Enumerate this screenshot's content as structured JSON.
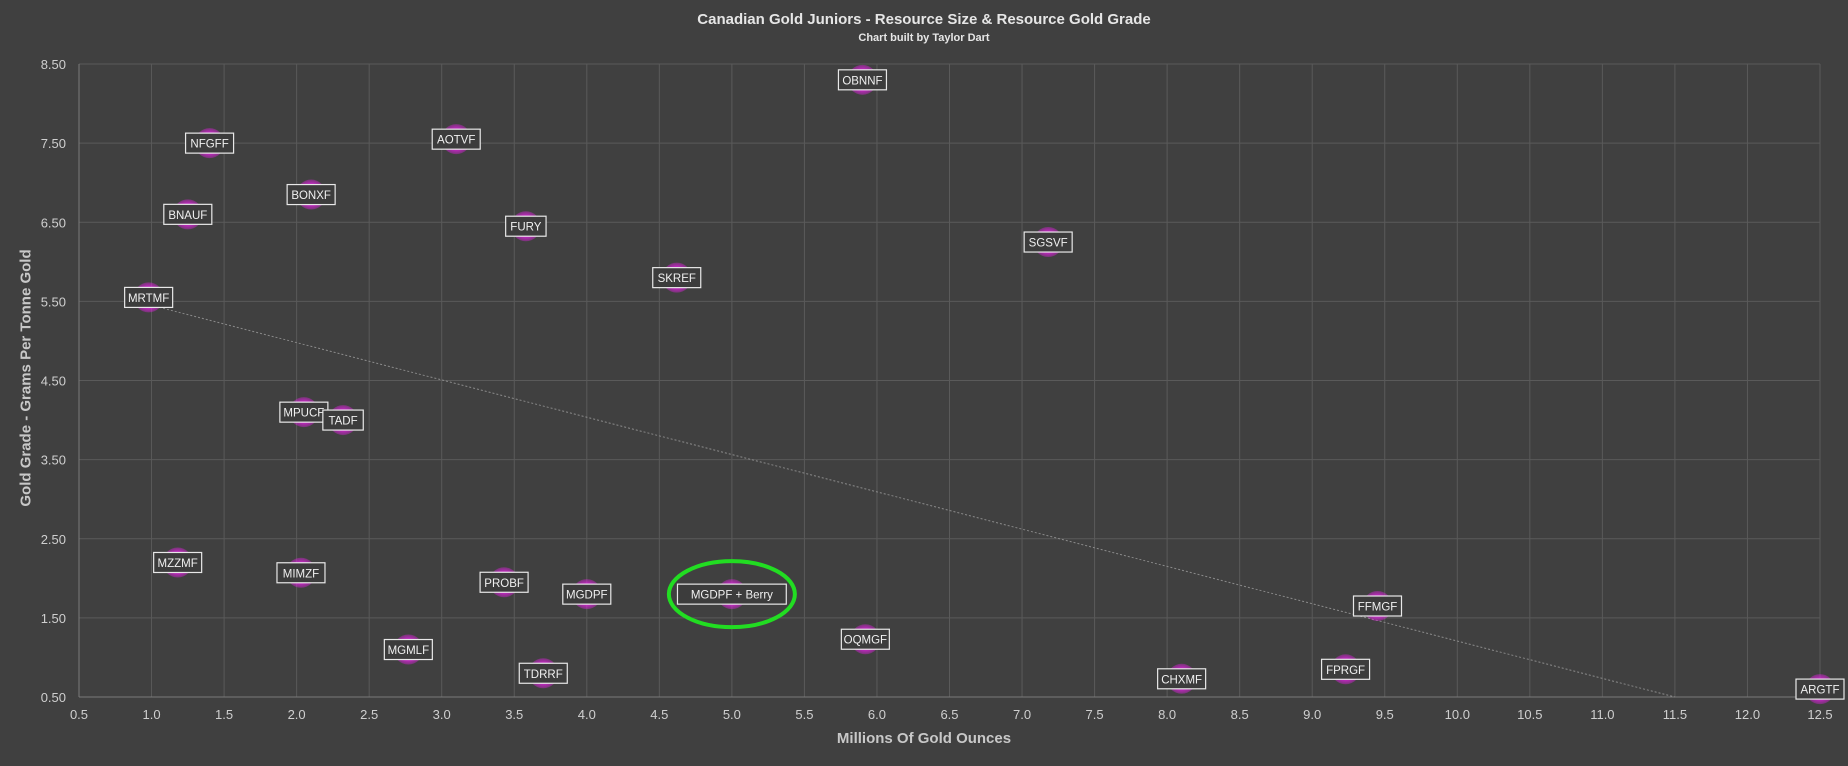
{
  "chart_data": {
    "type": "scatter",
    "title": "Canadian Gold Juniors - Resource Size & Resource Gold Grade",
    "subtitle": "Chart built by Taylor Dart",
    "xlabel": "Millions Of Gold Ounces",
    "ylabel": "Gold Grade - Grams Per Tonne Gold",
    "xlim": [
      0.5,
      12.5
    ],
    "ylim": [
      0.5,
      8.5
    ],
    "x_ticks": [
      "0.5",
      "1.0",
      "1.5",
      "2.0",
      "2.5",
      "3.0",
      "3.5",
      "4.0",
      "4.5",
      "5.0",
      "5.5",
      "6.0",
      "6.5",
      "7.0",
      "7.5",
      "8.0",
      "8.5",
      "9.0",
      "9.5",
      "10.0",
      "10.5",
      "11.0",
      "11.5",
      "12.0",
      "12.5"
    ],
    "y_ticks": [
      "0.50",
      "1.50",
      "2.50",
      "3.50",
      "4.50",
      "5.50",
      "6.50",
      "7.50",
      "8.50"
    ],
    "grid": true,
    "marker_color": "#e020e0",
    "highlight_color": "#22dd22",
    "trendline": {
      "x": [
        1.0,
        11.5
      ],
      "y": [
        5.45,
        0.5
      ],
      "color": "#8a8a8a"
    },
    "points": [
      {
        "label": "OBNNF",
        "x": 5.9,
        "y": 8.3
      },
      {
        "label": "NFGFF",
        "x": 1.4,
        "y": 7.5
      },
      {
        "label": "AOTVF",
        "x": 3.1,
        "y": 7.55
      },
      {
        "label": "BONXF",
        "x": 2.1,
        "y": 6.85
      },
      {
        "label": "BNAUF",
        "x": 1.25,
        "y": 6.6
      },
      {
        "label": "FURY",
        "x": 3.58,
        "y": 6.45
      },
      {
        "label": "SGSVF",
        "x": 7.18,
        "y": 6.25
      },
      {
        "label": "SKREF",
        "x": 4.62,
        "y": 5.8
      },
      {
        "label": "MRTMF",
        "x": 0.98,
        "y": 5.55
      },
      {
        "label": "MPUCF",
        "x": 2.05,
        "y": 4.1
      },
      {
        "label": "TADF",
        "x": 2.32,
        "y": 4.0
      },
      {
        "label": "MZZMF",
        "x": 1.18,
        "y": 2.2
      },
      {
        "label": "MIMZF",
        "x": 2.03,
        "y": 2.07
      },
      {
        "label": "PROBF",
        "x": 3.43,
        "y": 1.95
      },
      {
        "label": "MGDPF",
        "x": 4.0,
        "y": 1.8
      },
      {
        "label": "MGDPF + Berry",
        "x": 5.0,
        "y": 1.8,
        "highlight": true
      },
      {
        "label": "MGMLF",
        "x": 2.77,
        "y": 1.1
      },
      {
        "label": "TDRRF",
        "x": 3.7,
        "y": 0.8
      },
      {
        "label": "OQMGF",
        "x": 5.92,
        "y": 1.23
      },
      {
        "label": "FFMGF",
        "x": 9.45,
        "y": 1.65
      },
      {
        "label": "FPRGF",
        "x": 9.23,
        "y": 0.85
      },
      {
        "label": "CHXMF",
        "x": 8.1,
        "y": 0.73
      },
      {
        "label": "ARGTF",
        "x": 12.5,
        "y": 0.6
      }
    ]
  }
}
